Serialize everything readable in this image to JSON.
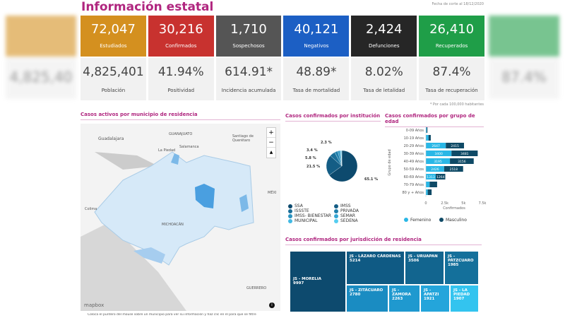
{
  "header": {
    "title": "Información estatal",
    "date": "Fecha de corte al 18/12/2020",
    "note": "* Por cada 100,000 habitantes"
  },
  "cards": [
    {
      "value": "72,047",
      "label": "Estudiados",
      "color": "#d4901f",
      "stat": "4,825,401",
      "stat_label": "Población"
    },
    {
      "value": "30,216",
      "label": "Confirmados",
      "color": "#c8322f",
      "stat": "41.94%",
      "stat_label": "Positividad"
    },
    {
      "value": "1,710",
      "label": "Sospechosos",
      "color": "#555555",
      "stat": "614.91*",
      "stat_label": "Incidencia acumulada"
    },
    {
      "value": "40,121",
      "label": "Negativos",
      "color": "#1c5fc4",
      "stat": "48.89*",
      "stat_label": "Tasa de mortalidad"
    },
    {
      "value": "2,424",
      "label": "Defunciones",
      "color": "#262626",
      "stat": "8.02%",
      "stat_label": "Tasa de letalidad"
    },
    {
      "value": "26,410",
      "label": "Recuperados",
      "color": "#1f9e48",
      "stat": "87.4%",
      "stat_label": "Tasa de recuperación"
    }
  ],
  "map": {
    "title": "Casos activos por municipio de residencia",
    "labels": [
      "GUANAJUATO",
      "Santiago de Querétaro",
      "Guadalajara",
      "Salamanca",
      "La Piedad",
      "Colima",
      "MICHOACÁN",
      "GUERRERO",
      "MÉXI"
    ],
    "attribution": "mapbox",
    "zoom_in": "+",
    "zoom_out": "−",
    "compass": "▲",
    "info": "i",
    "footer": "Coloca el puntero del mouse sobre un municipio para ver su información y haz clic en él para que se filtre"
  },
  "chart_data": [
    {
      "type": "pie",
      "title": "Casos confirmados por institución",
      "slices": [
        {
          "name": "SSA",
          "value": 65.1,
          "color": "#0d4a6e"
        },
        {
          "name": "IMSS",
          "value": 21.5,
          "color": "#145d85"
        },
        {
          "name": "ISSSTE",
          "value": 5.8,
          "color": "#1a6f99"
        },
        {
          "name": "PRIVADA",
          "value": 3.4,
          "color": "#2181ad"
        },
        {
          "name": "IMSS- BIENESTAR",
          "value": 2.3,
          "color": "#2b93c0"
        },
        {
          "name": "SEMAR",
          "value": 0.9,
          "color": "#36a6d3"
        },
        {
          "name": "MUNICIPAL",
          "value": 0.6,
          "color": "#42b9e3"
        },
        {
          "name": "SEDENA",
          "value": 0.4,
          "color": "#55cdf0"
        }
      ],
      "labels": [
        "65.1 %",
        "21.5 %",
        "5.8 %",
        "3.4 %",
        "2.3 %"
      ]
    },
    {
      "type": "bar",
      "stacked": true,
      "orientation": "horizontal",
      "title": "Casos confirmados por grupo de edad",
      "ylabel": "Grupo de edad",
      "xlabel": "Confirmados",
      "xlim": [
        0,
        7500
      ],
      "ticks": [
        "0",
        "2.5k",
        "5k",
        "7.5k"
      ],
      "categories": [
        "0-09 Años",
        "10-19 Años",
        "20-29 Años",
        "30-39 Años",
        "40-49 Años",
        "50-59 Años",
        "60-69 Años",
        "70-79 Años",
        "80 y + Años"
      ],
      "series": [
        {
          "name": "Femenino",
          "color": "#2ab7e6",
          "values": [
            108,
            350,
            2647,
            3400,
            3195,
            2426,
            1313,
            500,
            250
          ]
        },
        {
          "name": "Masculino",
          "color": "#0f4a66",
          "values": [
            100,
            300,
            2415,
            3481,
            3156,
            2518,
            1264,
            993,
            510
          ]
        }
      ]
    },
    {
      "type": "treemap",
      "title": "Casos confirmados por jurisdicción de residencia",
      "items": [
        {
          "name": "JS - MORELIA",
          "value": 9997
        },
        {
          "name": "JS - LÁZARO CÁRDENAS",
          "value": 5214
        },
        {
          "name": "JS - URUAPAN",
          "value": 3506
        },
        {
          "name": "JS - PÁTZCUARO",
          "value": 1985
        },
        {
          "name": "JS - ZITÁCUARO",
          "value": 2780
        },
        {
          "name": "JS - ZAMORA",
          "value": 2263
        },
        {
          "name": "JS - APATZI",
          "value": 1921
        },
        {
          "name": "JS - LA PIEDAD",
          "value": 1907
        }
      ]
    }
  ]
}
